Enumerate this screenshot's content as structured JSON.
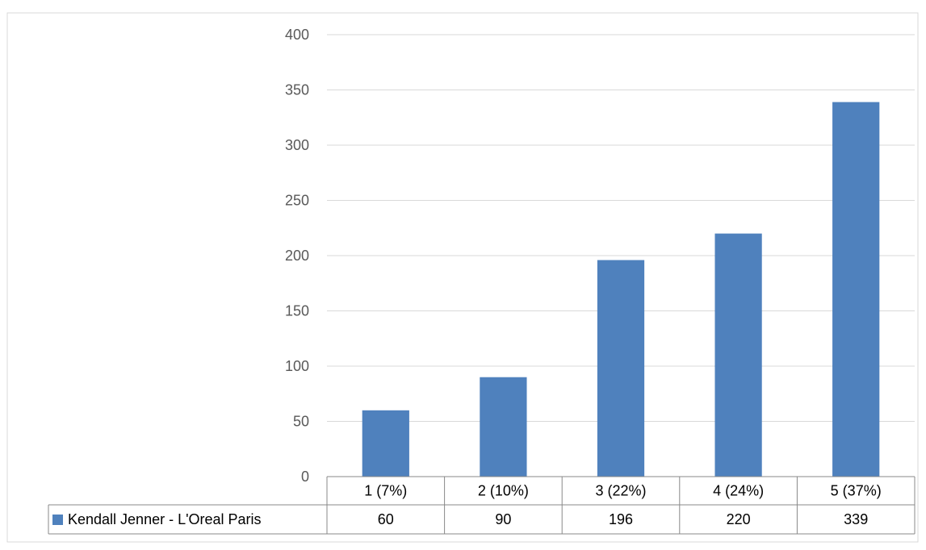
{
  "chart_data": {
    "type": "bar",
    "title": "",
    "xlabel": "",
    "ylabel": "",
    "categories": [
      "1 (7%)",
      "2 (10%)",
      "3 (22%)",
      "4 (24%)",
      "5 (37%)"
    ],
    "series": [
      {
        "name": "Kendall Jenner - L'Oreal Paris",
        "values": [
          60,
          90,
          196,
          220,
          339
        ],
        "color": "#4f81bd"
      }
    ],
    "ylim": [
      0,
      400
    ],
    "yticks": [
      0,
      50,
      100,
      150,
      200,
      250,
      300,
      350,
      400
    ],
    "grid": true,
    "legend": "data-table",
    "data_table": true
  }
}
